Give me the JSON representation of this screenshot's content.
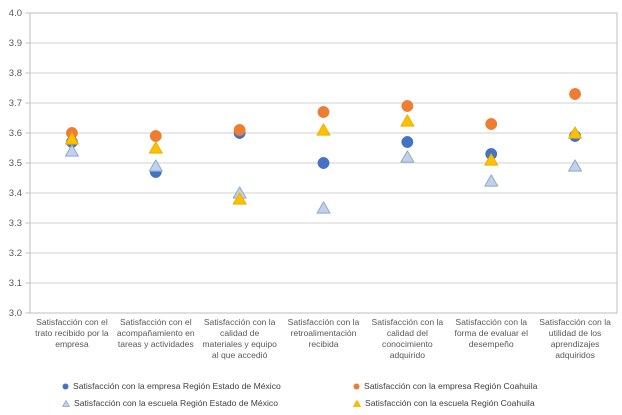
{
  "chart_data": {
    "type": "scatter",
    "title": "",
    "categories": [
      "Satisfacción con el trato recibido por la empresa",
      "Satisfacción con el acompañamiento en tareas y actividades",
      "Satisfacción con la calidad de materiales y equipo al que accedió",
      "Satisfacción con la retroalimentación recibida",
      "Satisfacción con la calidad del conocimiento adquirido",
      "Satisfacción con la forma de evaluar el desempeño",
      "Satisfacción con la utilidad de los aprendizajes adquiridos"
    ],
    "series": [
      {
        "name": "Satisfacción con la empresa Región Estado de México",
        "marker": "circle",
        "color": "#4472C4",
        "stroke": "#4472C4",
        "values": [
          3.57,
          3.47,
          3.6,
          3.5,
          3.57,
          3.53,
          3.59
        ]
      },
      {
        "name": "Satisfacción con la empresa Región Coahuila",
        "marker": "circle",
        "color": "#ED7D31",
        "stroke": "#ED7D31",
        "values": [
          3.6,
          3.59,
          3.61,
          3.67,
          3.69,
          3.63,
          3.73
        ]
      },
      {
        "name": "Satisfacción con la escuela Región Estado de México",
        "marker": "triangle",
        "color": "#BFD2E9",
        "stroke": "#8FA9CE",
        "values": [
          3.54,
          3.49,
          3.4,
          3.35,
          3.52,
          3.44,
          3.49
        ]
      },
      {
        "name": "Satisfacción con la escuela Región Coahuila",
        "marker": "triangle",
        "color": "#FFC000",
        "stroke": "#EDB000",
        "values": [
          3.58,
          3.55,
          3.38,
          3.61,
          3.64,
          3.51,
          3.6
        ]
      }
    ],
    "yaxis": {
      "min": 3.0,
      "max": 4.0,
      "step": 0.1,
      "decimals": 1
    },
    "xlabel": "",
    "ylabel": "",
    "grid": true,
    "legend_position": "bottom"
  },
  "colors": {
    "axis_text": "#595959",
    "legend_text": "#404040",
    "gridline": "#D2D2D2",
    "plot_border": "#BFBFBF",
    "tick": "#BFBFBF",
    "background": "#FFFFFF"
  }
}
